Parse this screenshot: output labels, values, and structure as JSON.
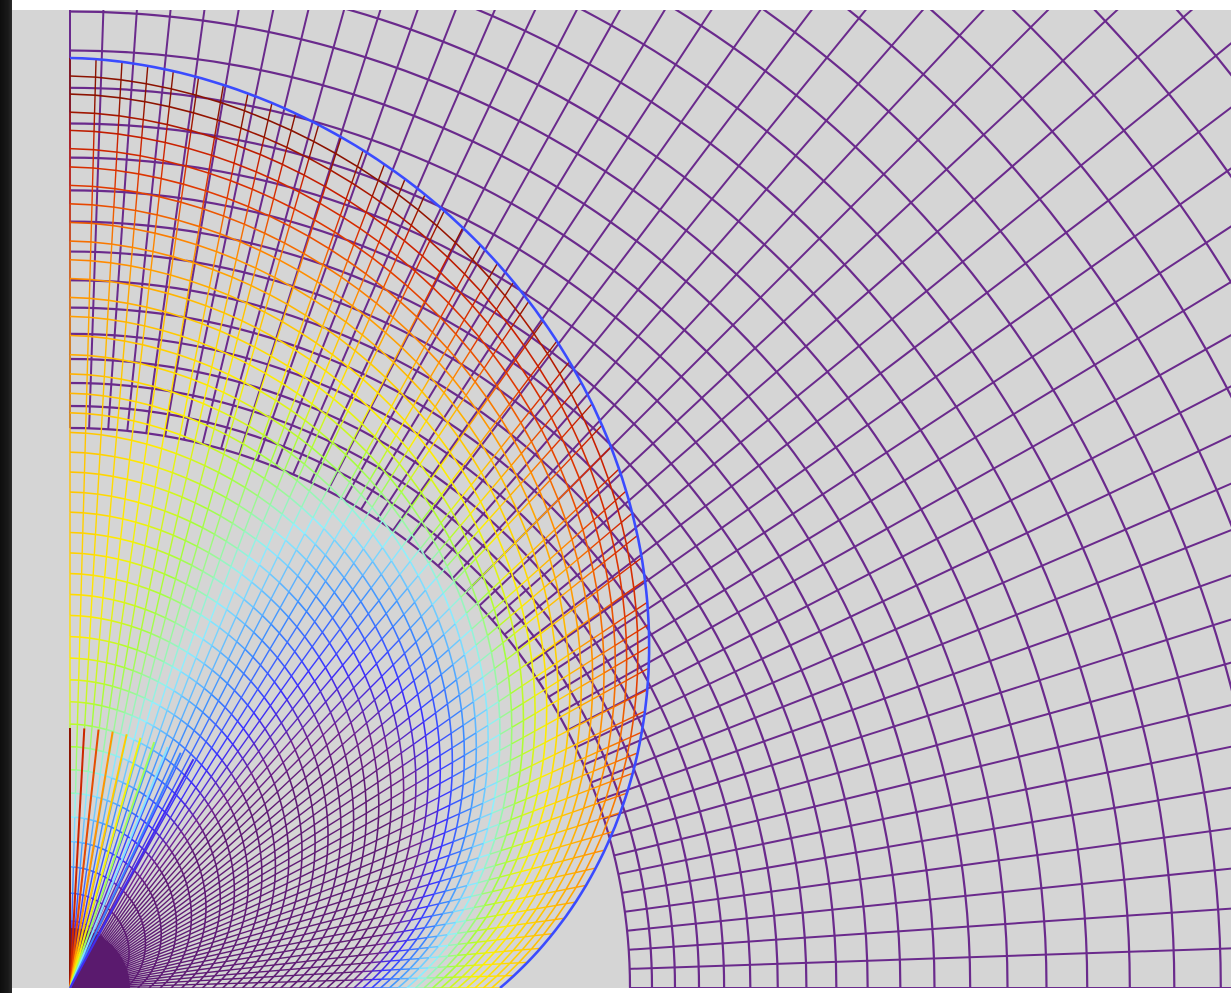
{
  "colors": {
    "frame": "#111111",
    "background": "#d5d5d5",
    "page": "#ffffff",
    "grid_outer": "#6a2a8c",
    "palette": [
      "#5a1a6e",
      "#6f2290",
      "#3a2fff",
      "#3b8cff",
      "#8ef0ff",
      "#a5ff3a",
      "#ffee00",
      "#ffc200",
      "#ff8a00",
      "#e23a00",
      "#c81e00",
      "#7a0f00"
    ]
  },
  "mesh": {
    "type": "polar-quarter-mesh-deformation",
    "quadrant": "first",
    "color_scale": "rainbow",
    "regions": [
      {
        "name": "undeformed-outer-grid",
        "color": "#6a2a8c"
      },
      {
        "name": "deformed-inner-region",
        "color_map": "rainbow"
      }
    ]
  }
}
